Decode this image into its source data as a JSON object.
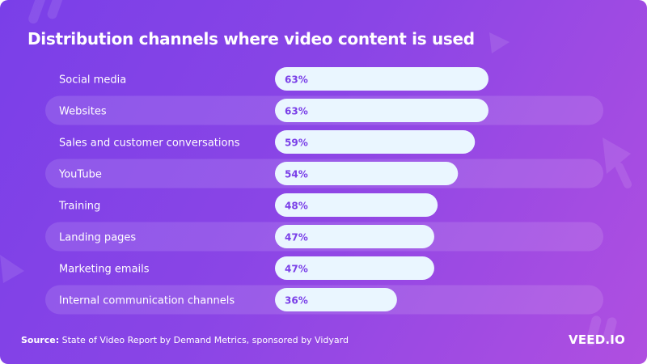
{
  "title": "Distribution channels where video content is used",
  "source_label": "Source:",
  "source_text": "State of Video Report by Demand Metrics, sponsored by Vidyard",
  "brand": "VEED.IO",
  "colors": {
    "bar_fill": "#eaf6ff",
    "value_text": "#7a3fe8",
    "row_band": "#ffffff"
  },
  "chart_data": {
    "type": "bar",
    "orientation": "horizontal",
    "title": "Distribution channels where video content is used",
    "categories": [
      "Social media",
      "Websites",
      "Sales and customer conversations",
      "YouTube",
      "Training",
      "Landing pages",
      "Marketing emails",
      "Internal communication channels"
    ],
    "values": [
      63,
      63,
      59,
      54,
      48,
      47,
      47,
      36
    ],
    "value_labels": [
      "63%",
      "63%",
      "59%",
      "54%",
      "48%",
      "47%",
      "47%",
      "36%"
    ],
    "unit": "%",
    "xlim": [
      0,
      100
    ],
    "grid": false,
    "legend": "none"
  }
}
